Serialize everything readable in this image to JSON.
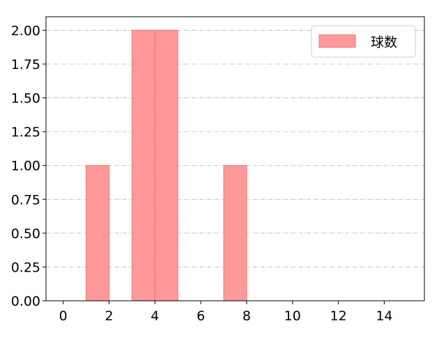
{
  "chart_data": {
    "type": "bar",
    "bins": [
      {
        "x0": 1,
        "x1": 2,
        "value": 1
      },
      {
        "x0": 3,
        "x1": 4,
        "value": 2
      },
      {
        "x0": 4,
        "x1": 5,
        "value": 2
      },
      {
        "x0": 7,
        "x1": 8,
        "value": 1
      }
    ],
    "xlim": [
      -0.75,
      15.75
    ],
    "ylim": [
      0,
      2.1
    ],
    "xticks": [
      0,
      2,
      4,
      6,
      8,
      10,
      12,
      14
    ],
    "yticks": [
      "0.00",
      "0.25",
      "0.50",
      "0.75",
      "1.00",
      "1.25",
      "1.50",
      "1.75",
      "2.00"
    ],
    "grid": "y-dashdot",
    "legend": {
      "position": "top-right",
      "entries": [
        "球数"
      ]
    },
    "colors": {
      "bar_fill": "#ff9999",
      "bar_edge": "#f07070",
      "grid": "#b0b0b0"
    },
    "title": "",
    "xlabel": "",
    "ylabel": ""
  }
}
